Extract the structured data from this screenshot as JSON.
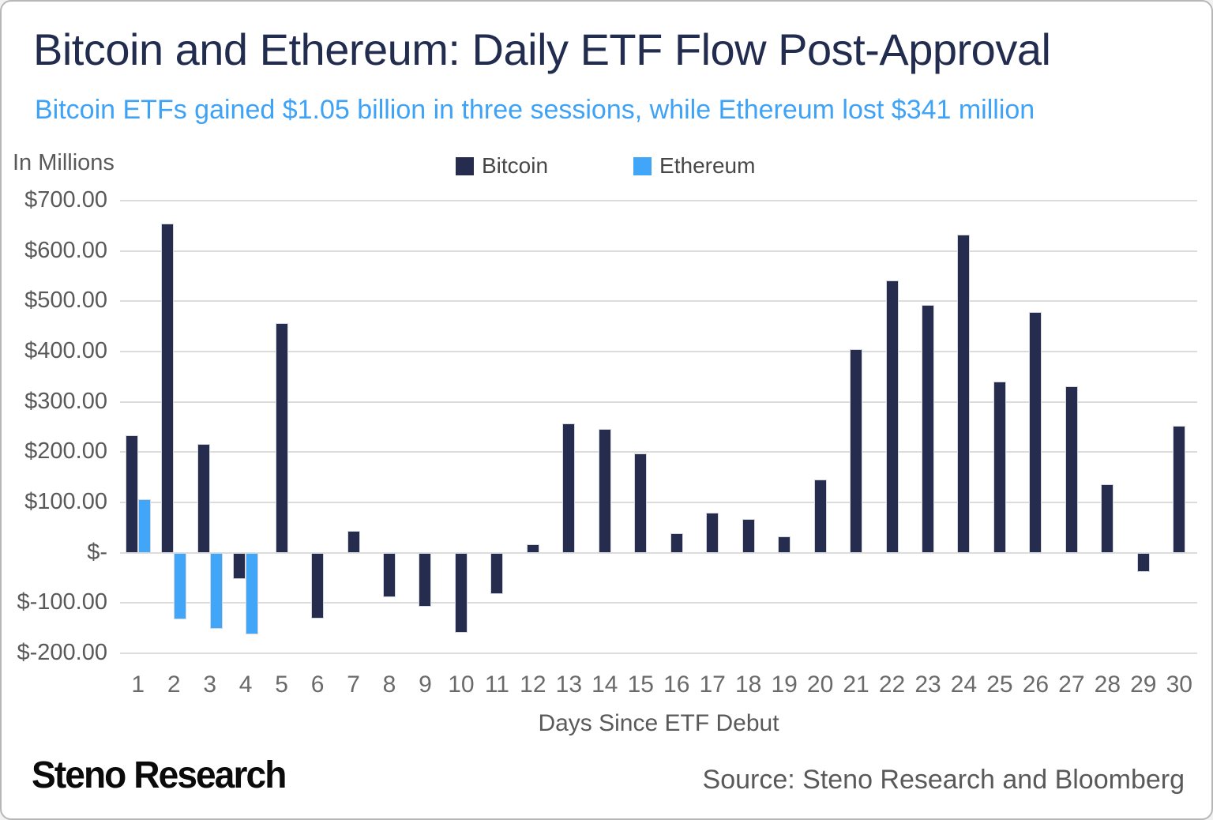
{
  "header": {
    "title": "Bitcoin and Ethereum: Daily ETF Flow Post-Approval",
    "subtitle": "Bitcoin ETFs gained $1.05 billion in three sessions, while Ethereum lost $341 million"
  },
  "chart_data": {
    "type": "bar",
    "title": "Bitcoin and Ethereum: Daily ETF Flow Post-Approval",
    "units_label": "In Millions",
    "xlabel": "Days Since ETF Debut",
    "ylabel": "In Millions",
    "ylim": [
      -200,
      700
    ],
    "ytick_step": 100,
    "ytick_labels": [
      "$700.00",
      "$600.00",
      "$500.00",
      "$400.00",
      "$300.00",
      "$200.00",
      "$100.00",
      "$-",
      "$-100.00",
      "$-200.00"
    ],
    "grid": true,
    "legend_position": "top",
    "categories": [
      1,
      2,
      3,
      4,
      5,
      6,
      7,
      8,
      9,
      10,
      11,
      12,
      13,
      14,
      15,
      16,
      17,
      18,
      19,
      20,
      21,
      22,
      23,
      24,
      25,
      26,
      27,
      28,
      29,
      30
    ],
    "series": [
      {
        "name": "Bitcoin",
        "color": "#252c4e",
        "values": [
          234,
          655,
          217,
          -53,
          456,
          -131,
          44,
          -88,
          -108,
          -159,
          -82,
          16,
          257,
          246,
          198,
          38,
          80,
          67,
          33,
          146,
          405,
          542,
          493,
          633,
          341,
          479,
          331,
          136,
          -38,
          252
        ]
      },
      {
        "name": "Ethereum",
        "color": "#41a5f8",
        "values": [
          107,
          -133,
          -152,
          -163,
          null,
          null,
          null,
          null,
          null,
          null,
          null,
          null,
          null,
          null,
          null,
          null,
          null,
          null,
          null,
          null,
          null,
          null,
          null,
          null,
          null,
          null,
          null,
          null,
          null,
          null
        ]
      }
    ]
  },
  "colors": {
    "title": "#222c4e",
    "subtitle": "#3ea2f6",
    "axis_text": "#595959",
    "gridline": "#dcdcdc",
    "bitcoin": "#252c4e",
    "ethereum": "#41a5f8"
  },
  "footer": {
    "logo": "Steno Research",
    "source": "Source: Steno Research and Bloomberg"
  }
}
